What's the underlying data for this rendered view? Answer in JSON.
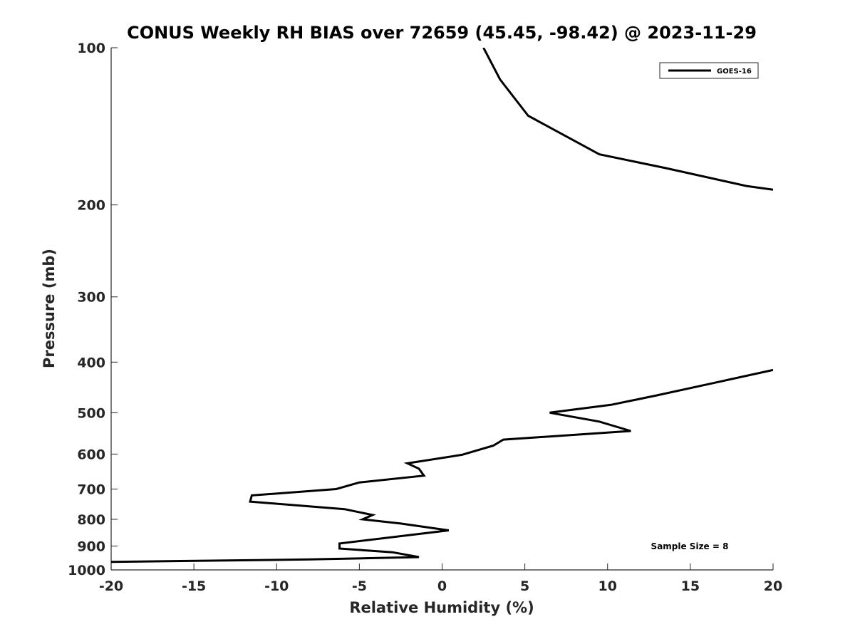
{
  "chart_data": {
    "type": "line",
    "title": "CONUS Weekly RH BIAS over 72659 (45.45, -98.42) @ 2023-11-29",
    "xlabel": "Relative Humidity (%)",
    "ylabel": "Pressure (mb)",
    "xlim": [
      -20,
      20
    ],
    "ylim": [
      100,
      1000
    ],
    "y_scale": "log",
    "y_reversed": true,
    "grid": false,
    "x_ticks": [
      -20,
      -15,
      -10,
      -5,
      0,
      5,
      10,
      15,
      20
    ],
    "x_tick_labels": [
      "-20",
      "-15",
      "-10",
      "-5",
      "0",
      "5",
      "10",
      "15",
      "20"
    ],
    "y_ticks": [
      100,
      200,
      300,
      400,
      500,
      600,
      700,
      800,
      900,
      1000
    ],
    "y_tick_labels": [
      "100",
      "200",
      "300",
      "400",
      "500",
      "600",
      "700",
      "800",
      "900",
      "1000"
    ],
    "legend_placement": "top-right",
    "annotation": "Sample Size = 8",
    "series": [
      {
        "name": "GOES-16",
        "color": "#000000",
        "segments": [
          [
            {
              "x": 2.5,
              "y": 100
            },
            {
              "x": 3.5,
              "y": 115
            },
            {
              "x": 5.2,
              "y": 135
            },
            {
              "x": 9.5,
              "y": 160
            },
            {
              "x": 13.5,
              "y": 170
            },
            {
              "x": 18.4,
              "y": 184
            },
            {
              "x": 20.0,
              "y": 187
            }
          ],
          [
            {
              "x": 20.0,
              "y": 414
            },
            {
              "x": 16.2,
              "y": 440
            },
            {
              "x": 13.0,
              "y": 463
            },
            {
              "x": 10.2,
              "y": 483
            },
            {
              "x": 6.5,
              "y": 500
            },
            {
              "x": 9.5,
              "y": 520
            },
            {
              "x": 11.4,
              "y": 542
            },
            {
              "x": 3.7,
              "y": 563
            },
            {
              "x": 3.1,
              "y": 578
            },
            {
              "x": 1.2,
              "y": 602
            },
            {
              "x": -2.1,
              "y": 625
            },
            {
              "x": -1.4,
              "y": 640
            },
            {
              "x": -1.1,
              "y": 660
            },
            {
              "x": -5.0,
              "y": 680
            },
            {
              "x": -6.4,
              "y": 700
            },
            {
              "x": -11.5,
              "y": 720
            },
            {
              "x": -11.6,
              "y": 740
            },
            {
              "x": -5.9,
              "y": 765
            },
            {
              "x": -4.2,
              "y": 785
            },
            {
              "x": -4.8,
              "y": 800
            },
            {
              "x": -2.5,
              "y": 815
            },
            {
              "x": 0.4,
              "y": 840
            },
            {
              "x": -6.2,
              "y": 890
            },
            {
              "x": -6.2,
              "y": 910
            },
            {
              "x": -3.0,
              "y": 925
            },
            {
              "x": -1.4,
              "y": 945
            },
            {
              "x": -8.0,
              "y": 955
            },
            {
              "x": -20.0,
              "y": 965
            }
          ]
        ]
      }
    ]
  }
}
